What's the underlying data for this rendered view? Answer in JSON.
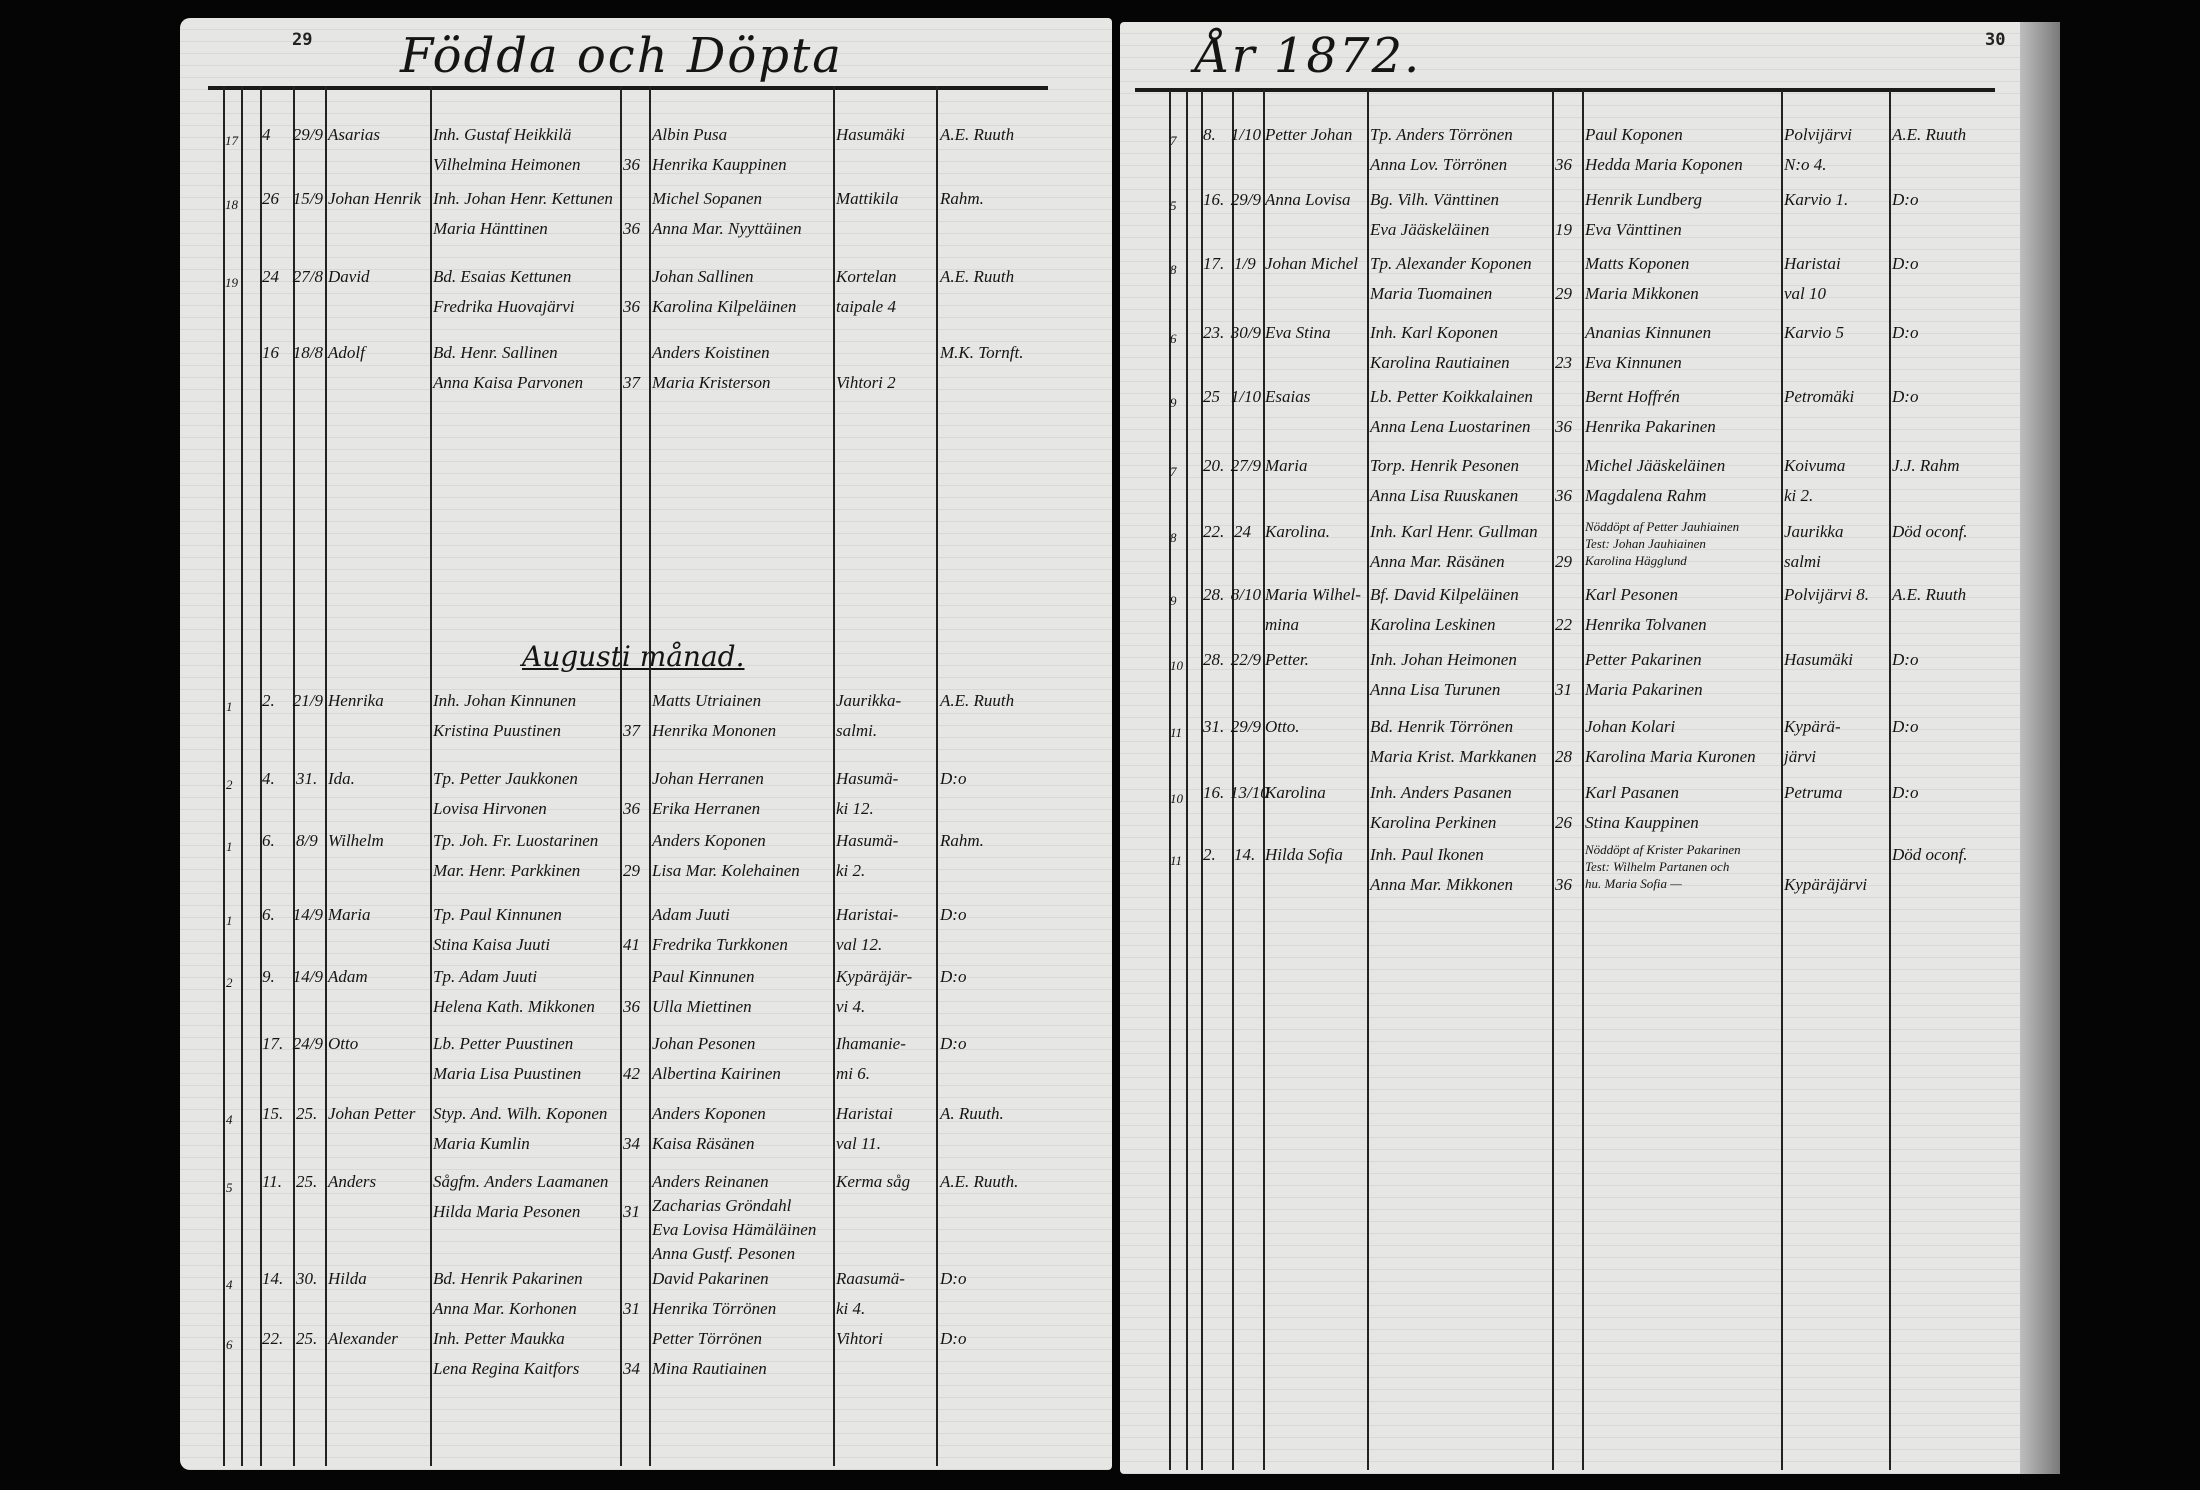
{
  "left_page": {
    "page_number": "29",
    "title": "Födda och Döpta",
    "month_heading": "Augusti månad.",
    "entries": [
      {
        "margin": "17",
        "day": "4",
        "date": "29/9",
        "child": "Asarias",
        "parents": [
          "Inh. Gustaf Heikkilä",
          "Vilhelmina Heimonen"
        ],
        "age": "36",
        "sponsors": [
          "Albin Pusa",
          "Henrika Kauppinen"
        ],
        "village": [
          "Hasumäki"
        ],
        "officiant": "A.E. Ruuth"
      },
      {
        "margin": "18",
        "day": "26",
        "date": "15/9",
        "child": "Johan Henrik",
        "parents": [
          "Inh. Johan Henr. Kettunen",
          "Maria Hänttinen"
        ],
        "age": "36",
        "sponsors": [
          "Michel Sopanen",
          "Anna Mar. Nyyttäinen"
        ],
        "village": [
          "Mattikila"
        ],
        "officiant": "Rahm."
      },
      {
        "margin": "19",
        "day": "24",
        "date": "27/8",
        "child": "David",
        "parents": [
          "Bd. Esaias Kettunen",
          "Fredrika Huovajärvi"
        ],
        "age": "36",
        "sponsors": [
          "Johan Sallinen",
          "Karolina Kilpeläinen"
        ],
        "village": [
          "Kortelan",
          "taipale 4"
        ],
        "officiant": "A.E. Ruuth"
      },
      {
        "margin": "",
        "day": "16",
        "date": "18/8",
        "child": "Adolf",
        "parents": [
          "Bd. Henr. Sallinen",
          "Anna Kaisa Parvonen"
        ],
        "age": "37",
        "sponsors": [
          "Anders Koistinen",
          "Maria Kristerson"
        ],
        "village": [
          "",
          "Vihtori 2"
        ],
        "officiant": "M.K. Tornft."
      },
      {
        "margin": "1",
        "day": "2.",
        "date": "21/9",
        "child": "Henrika",
        "parents": [
          "Inh. Johan Kinnunen",
          "Kristina Puustinen"
        ],
        "age": "37",
        "sponsors": [
          "Matts Utriainen",
          "Henrika Mononen"
        ],
        "village": [
          "Jaurikka-",
          "salmi."
        ],
        "officiant": "A.E. Ruuth"
      },
      {
        "margin": "2",
        "day": "4.",
        "date": "31.",
        "child": "Ida.",
        "parents": [
          "Tp. Petter Jaukkonen",
          "Lovisa Hirvonen"
        ],
        "age": "36",
        "sponsors": [
          "Johan Herranen",
          "Erika Herranen"
        ],
        "village": [
          "Hasumä-",
          "ki 12."
        ],
        "officiant": "D:o"
      },
      {
        "margin": "1",
        "day": "6.",
        "date": "8/9",
        "child": "Wilhelm",
        "parents": [
          "Tp. Joh. Fr. Luostarinen",
          "Mar. Henr. Parkkinen"
        ],
        "age": "29",
        "sponsors": [
          "Anders Koponen",
          "Lisa Mar. Kolehainen"
        ],
        "village": [
          "Hasumä-",
          "ki 2."
        ],
        "officiant": "Rahm."
      },
      {
        "margin": "1",
        "day": "6.",
        "date": "14/9",
        "child": "Maria",
        "parents": [
          "Tp. Paul Kinnunen",
          "Stina Kaisa Juuti"
        ],
        "age": "41",
        "sponsors": [
          "Adam Juuti",
          "Fredrika Turkkonen"
        ],
        "village": [
          "Haristai-",
          "val 12."
        ],
        "officiant": "D:o"
      },
      {
        "margin": "2",
        "day": "9.",
        "date": "14/9",
        "child": "Adam",
        "parents": [
          "Tp. Adam Juuti",
          "Helena Kath. Mikkonen"
        ],
        "age": "36",
        "sponsors": [
          "Paul Kinnunen",
          "Ulla Miettinen"
        ],
        "village": [
          "Kypäräjär-",
          "vi 4."
        ],
        "officiant": "D:o"
      },
      {
        "margin": "",
        "day": "17.",
        "date": "24/9",
        "child": "Otto",
        "parents": [
          "Lb. Petter Puustinen",
          "Maria Lisa Puustinen"
        ],
        "age": "42",
        "sponsors": [
          "Johan Pesonen",
          "Albertina Kairinen"
        ],
        "village": [
          "Ihamanie-",
          "mi 6."
        ],
        "officiant": "D:o"
      },
      {
        "margin": "4",
        "day": "15.",
        "date": "25.",
        "child": "Johan Petter",
        "parents": [
          "Styp. And. Wilh. Koponen",
          "Maria Kumlin"
        ],
        "age": "34",
        "sponsors": [
          "Anders Koponen",
          "Kaisa Räsänen"
        ],
        "village": [
          "Haristai",
          "val 11."
        ],
        "officiant": "A. Ruuth."
      },
      {
        "margin": "5",
        "day": "11.",
        "date": "25.",
        "child": "Anders",
        "parents": [
          "Sågfт. Anders Laamanen",
          "Hilda Maria Pesonen"
        ],
        "age": "31",
        "sponsors": [
          "Anders Reinanen",
          "Zacharias Gröndahl",
          "Eva Lovisa Hämäläinen",
          "Anna Gustf. Pesonen"
        ],
        "village": [
          "Kerma såg"
        ],
        "officiant": "A.E. Ruuth."
      },
      {
        "margin": "4",
        "day": "14.",
        "date": "30.",
        "child": "Hilda",
        "parents": [
          "Bd. Henrik Pakarinen",
          "Anna Mar. Korhonen"
        ],
        "age": "31",
        "sponsors": [
          "David Pakarinen",
          "Henrika Törrönen"
        ],
        "village": [
          "Raasumä-",
          "ki 4."
        ],
        "officiant": "D:o"
      },
      {
        "margin": "6",
        "day": "22.",
        "date": "25.",
        "child": "Alexander",
        "parents": [
          "Inh. Petter Maukka",
          "Lena Regina Kaitfors"
        ],
        "age": "34",
        "sponsors": [
          "Petter Törrönen",
          "Mina Rautiainen"
        ],
        "village": [
          "Vihtori"
        ],
        "officiant": "D:o"
      }
    ]
  },
  "right_page": {
    "page_number": "30",
    "title": "År 1872.",
    "entries": [
      {
        "margin": "7",
        "day": "8.",
        "date": "1/10",
        "child": "Petter Johan",
        "parents": [
          "Tp. Anders Törrönen",
          "Anna Lov. Törrönen"
        ],
        "age": "36",
        "sponsors": [
          "Paul Koponen",
          "Hedda Maria Koponen"
        ],
        "village": [
          "Polvijärvi",
          "N:o 4."
        ],
        "officiant": "A.E. Ruuth"
      },
      {
        "margin": "5",
        "day": "16.",
        "date": "29/9",
        "child": "Anna Lovisa",
        "parents": [
          "Bg. Vilh. Vänttinen",
          "Eva Jääskeläinen"
        ],
        "age": "19",
        "sponsors": [
          "Henrik Lundberg",
          "Eva Vänttinen"
        ],
        "village": [
          "Karvio 1."
        ],
        "officiant": "D:o"
      },
      {
        "margin": "8",
        "day": "17.",
        "date": "1/9",
        "child": "Johan Michel",
        "parents": [
          "Tp. Alexander Koponen",
          "Maria Tuomainen"
        ],
        "age": "29",
        "sponsors": [
          "Matts Koponen",
          "Maria Mikkonen"
        ],
        "village": [
          "Haristai",
          "val 10"
        ],
        "officiant": "D:o"
      },
      {
        "margin": "6",
        "day": "23.",
        "date": "30/9",
        "child": "Eva Stina",
        "parents": [
          "Inh. Karl Koponen",
          "Karolina Rautiainen"
        ],
        "age": "23",
        "sponsors": [
          "Ananias Kinnunen",
          "Eva Kinnunen"
        ],
        "village": [
          "Karvio 5"
        ],
        "officiant": "D:o"
      },
      {
        "margin": "9",
        "day": "25",
        "date": "1/10",
        "child": "Esaias",
        "parents": [
          "Lb. Petter Koikkalainen",
          "Anna Lena Luostarinen"
        ],
        "age": "36",
        "sponsors": [
          "Bernt Hoffrén",
          "Henrika Pakarinen"
        ],
        "village": [
          "Petromäki"
        ],
        "officiant": "D:o"
      },
      {
        "margin": "7",
        "day": "20.",
        "date": "27/9",
        "child": "Maria",
        "parents": [
          "Torp. Henrik Pesonen",
          "Anna Lisa Ruuskanen"
        ],
        "age": "36",
        "sponsors": [
          "Michel Jääskeläinen",
          "Magdalena Rahm"
        ],
        "village": [
          "Koivuma",
          "ki 2."
        ],
        "officiant": "J.J. Rahm"
      },
      {
        "margin": "8",
        "day": "22.",
        "date": "24",
        "child": "Karolina.",
        "parents": [
          "Inh. Karl Henr. Gullman",
          "Anna Mar. Räsänen"
        ],
        "age": "29",
        "sponsors": [
          "Nöddöpt af Petter Jauhiainen",
          "Test: Johan Jauhiainen",
          "Karolina Hägglund"
        ],
        "village": [
          "Jaurikka",
          "salmi"
        ],
        "officiant": "Död oconf."
      },
      {
        "margin": "9",
        "day": "28.",
        "date": "8/10",
        "child": "Maria Wilhel-",
        "parents": [
          "Bf. David Kilpeläinen",
          "Karolina Leskinen"
        ],
        "age": "22",
        "sponsors": [
          "Karl Pesonen",
          "Henrika Tolvanen"
        ],
        "village": [
          "Polvijärvi 8."
        ],
        "officiant": "A.E. Ruuth",
        "child2": "mina"
      },
      {
        "margin": "10",
        "day": "28.",
        "date": "22/9",
        "child": "Petter.",
        "parents": [
          "Inh. Johan Heimonen",
          "Anna Lisa Turunen"
        ],
        "age": "31",
        "sponsors": [
          "Petter Pakarinen",
          "Maria Pakarinen"
        ],
        "village": [
          "Hasumäki"
        ],
        "officiant": "D:o"
      },
      {
        "margin": "11",
        "day": "31.",
        "date": "29/9",
        "child": "Otto.",
        "parents": [
          "Bd. Henrik Törrönen",
          "Maria Krist. Markkanen"
        ],
        "age": "28",
        "sponsors": [
          "Johan Kolari",
          "Karolina Maria Kuronen"
        ],
        "village": [
          "Kypärä-",
          "järvi"
        ],
        "officiant": "D:o"
      },
      {
        "margin": "10",
        "day": "16.",
        "date": "13/10",
        "child": "Karolina",
        "parents": [
          "Inh. Anders Pasanen",
          "Karolina Perkinen"
        ],
        "age": "26",
        "sponsors": [
          "Karl Pasanen",
          "Stina Kauppinen"
        ],
        "village": [
          "Petruma"
        ],
        "officiant": "D:o"
      },
      {
        "margin": "11",
        "day": "2.",
        "date": "14.",
        "child": "Hilda Sofia",
        "parents": [
          "Inh. Paul Ikonen",
          "Anna Mar. Mikkonen"
        ],
        "age": "36",
        "sponsors": [
          "Nöddöpt af Krister Pakarinen",
          "Test: Wilhelm Partanen och",
          "hu. Maria Sofia —"
        ],
        "village": [
          "",
          "Kypäräjärvi"
        ],
        "officiant": "Död oconf."
      }
    ]
  }
}
